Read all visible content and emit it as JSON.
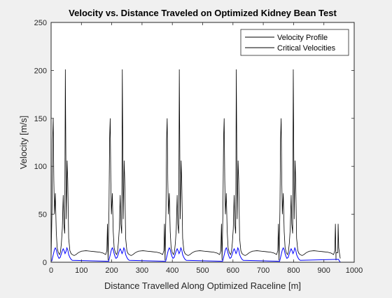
{
  "figure": {
    "background": "#f0f0f0",
    "axes_background": "#ffffff"
  },
  "chart_data": {
    "type": "line",
    "title": "Velocity vs. Distance Traveled on Optimized Kidney Bean Test",
    "xlabel": "Distance Travelled Along Optimized Raceline [m]",
    "ylabel": "Velocity [m/s]",
    "xlim": [
      0,
      1000
    ],
    "ylim": [
      0,
      250
    ],
    "xticks": [
      0,
      100,
      200,
      300,
      400,
      500,
      600,
      700,
      800,
      900,
      1000
    ],
    "yticks": [
      0,
      50,
      100,
      150,
      200,
      250
    ],
    "grid": false,
    "legend_position": "top-right",
    "lap_offsets": [
      0,
      188,
      376,
      564,
      752
    ],
    "series": [
      {
        "name": "Velocity Profile",
        "color": "#0000ff",
        "role": "profile",
        "lap_points": [
          [
            2,
            1
          ],
          [
            5,
            5
          ],
          [
            8,
            9
          ],
          [
            11,
            13
          ],
          [
            14,
            15
          ],
          [
            17,
            13
          ],
          [
            20,
            9
          ],
          [
            23,
            6
          ],
          [
            26,
            4
          ],
          [
            30,
            5
          ],
          [
            34,
            9
          ],
          [
            37,
            12
          ],
          [
            40,
            14
          ],
          [
            43,
            12
          ],
          [
            46,
            9
          ],
          [
            49,
            11
          ],
          [
            52,
            15
          ],
          [
            55,
            13
          ],
          [
            58,
            8
          ],
          [
            62,
            5
          ],
          [
            66,
            3
          ],
          [
            70,
            2
          ]
        ],
        "final_points": [
          [
            948,
            3
          ],
          [
            951,
            1.5
          ],
          [
            953,
            0.5
          ],
          [
            954,
            0
          ]
        ]
      },
      {
        "name": "Critical Velocities",
        "color": "#000000",
        "role": "critical",
        "lap_points": [
          [
            0,
            2
          ],
          [
            3,
            55
          ],
          [
            5,
            128
          ],
          [
            7,
            150
          ],
          [
            9,
            85
          ],
          [
            11,
            50
          ],
          [
            14,
            72
          ],
          [
            17,
            32
          ],
          [
            20,
            15
          ],
          [
            24,
            10
          ],
          [
            28,
            8
          ],
          [
            31,
            11
          ],
          [
            34,
            20
          ],
          [
            37,
            35
          ],
          [
            40,
            70
          ],
          [
            42,
            40
          ],
          [
            45,
            30
          ],
          [
            47,
            201
          ],
          [
            50,
            45
          ],
          [
            53,
            106
          ],
          [
            55,
            85
          ],
          [
            58,
            25
          ],
          [
            62,
            12
          ],
          [
            66,
            9
          ],
          [
            70,
            8
          ],
          [
            76,
            7
          ],
          [
            82,
            8
          ],
          [
            90,
            10
          ],
          [
            100,
            11.5
          ],
          [
            115,
            12
          ],
          [
            130,
            11.5
          ],
          [
            145,
            11
          ],
          [
            160,
            10.5
          ],
          [
            172,
            9.5
          ],
          [
            180,
            8
          ],
          [
            184,
            12
          ],
          [
            186,
            40
          ],
          [
            188,
            2
          ]
        ],
        "final_points": [
          [
            940,
            10
          ],
          [
            946,
            10
          ],
          [
            947,
            40
          ],
          [
            949,
            15
          ],
          [
            952,
            8
          ],
          [
            954,
            4
          ]
        ]
      }
    ]
  }
}
